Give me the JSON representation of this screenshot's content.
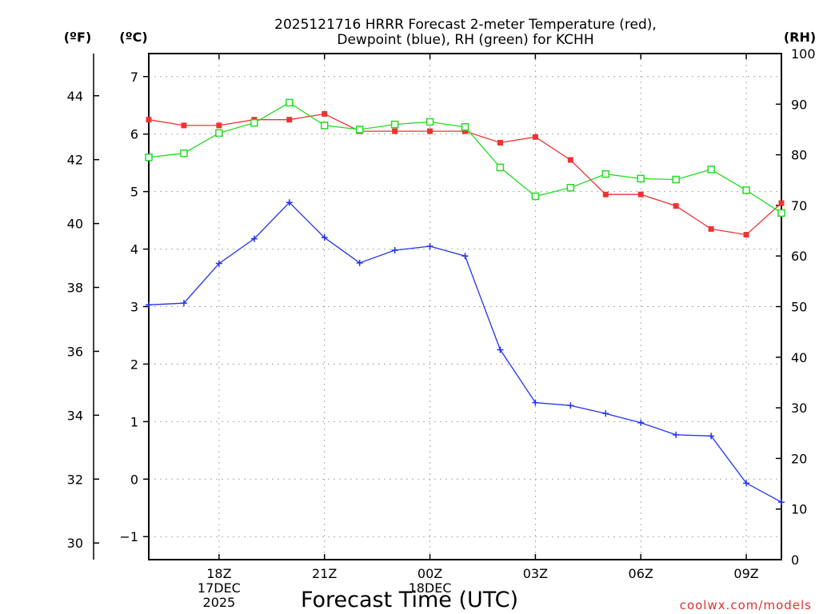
{
  "chart_data": {
    "type": "line",
    "title": "2025121716 HRRR Forecast 2-meter Temperature (red),",
    "title_line2": "Dewpoint (blue), RH (green) for KCHH",
    "xlabel": "Forecast Time (UTC)",
    "credit": "coolwx.com/models",
    "unit_labels": {
      "f": "(ºF)",
      "c": "(ºC)",
      "rh": "(RH)"
    },
    "x_hours": [
      16,
      17,
      18,
      19,
      20,
      21,
      22,
      23,
      24,
      25,
      26,
      27,
      28,
      29,
      30,
      31,
      32,
      33,
      34
    ],
    "x_ticks": [
      {
        "hour": 18,
        "lines": [
          "18Z",
          "17DEC",
          "2025"
        ]
      },
      {
        "hour": 21,
        "lines": [
          "21Z"
        ]
      },
      {
        "hour": 24,
        "lines": [
          "00Z",
          "18DEC"
        ]
      },
      {
        "hour": 27,
        "lines": [
          "03Z"
        ]
      },
      {
        "hour": 30,
        "lines": [
          "06Z"
        ]
      },
      {
        "hour": 33,
        "lines": [
          "09Z"
        ]
      }
    ],
    "y_celsius": {
      "range": [
        -1.4,
        7.4
      ],
      "ticks": [
        -1,
        0,
        1,
        2,
        3,
        4,
        5,
        6,
        7
      ]
    },
    "y_fahrenheit": {
      "ticks": [
        30,
        32,
        34,
        36,
        38,
        40,
        42,
        44
      ]
    },
    "y_rh": {
      "range": [
        0,
        100
      ],
      "ticks": [
        0,
        10,
        20,
        30,
        40,
        50,
        60,
        70,
        80,
        90,
        100
      ]
    },
    "series": [
      {
        "name": "2-meter Temperature",
        "axis": "celsius",
        "color": "#ee3333",
        "marker": "filled-square",
        "values": [
          6.25,
          6.15,
          6.15,
          6.25,
          6.25,
          6.35,
          6.05,
          6.05,
          6.05,
          6.05,
          5.85,
          5.95,
          5.55,
          4.95,
          4.95,
          4.75,
          4.35,
          4.25,
          4.8
        ]
      },
      {
        "name": "Dewpoint",
        "axis": "celsius",
        "color": "#2233ee",
        "marker": "plus",
        "values": [
          3.03,
          3.06,
          3.75,
          4.18,
          4.81,
          4.2,
          3.76,
          3.98,
          4.05,
          3.88,
          2.25,
          1.33,
          1.28,
          1.14,
          0.98,
          0.77,
          0.75,
          -0.07,
          -0.4
        ]
      },
      {
        "name": "RH",
        "axis": "rh",
        "color": "#22dd22",
        "marker": "open-square",
        "values": [
          79.5,
          80.3,
          84.3,
          86.3,
          90.3,
          85.8,
          85,
          86,
          86.5,
          85.5,
          77.5,
          71.8,
          73.5,
          76.2,
          75.3,
          75.1,
          77.1,
          73,
          68.5
        ]
      }
    ]
  }
}
